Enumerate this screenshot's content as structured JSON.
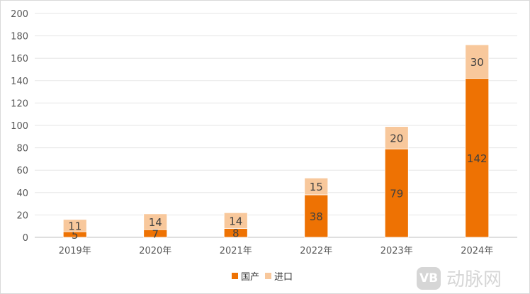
{
  "chart_data": {
    "type": "bar",
    "stacked": true,
    "categories": [
      "2019年",
      "2020年",
      "2021年",
      "2022年",
      "2023年",
      "2024年"
    ],
    "series": [
      {
        "name": "国产",
        "values": [
          5,
          7,
          8,
          38,
          79,
          142
        ],
        "color": "#ee7203"
      },
      {
        "name": "进口",
        "values": [
          11,
          14,
          14,
          15,
          20,
          30
        ],
        "color": "#f8c89c"
      }
    ],
    "ylim": [
      0,
      200
    ],
    "yticks": [
      0,
      20,
      40,
      60,
      80,
      100,
      120,
      140,
      160,
      180,
      200
    ],
    "grid": true,
    "legend_position": "bottom",
    "data_labels": true
  },
  "watermark": {
    "logo_text": "VB",
    "text": "动脉网"
  }
}
